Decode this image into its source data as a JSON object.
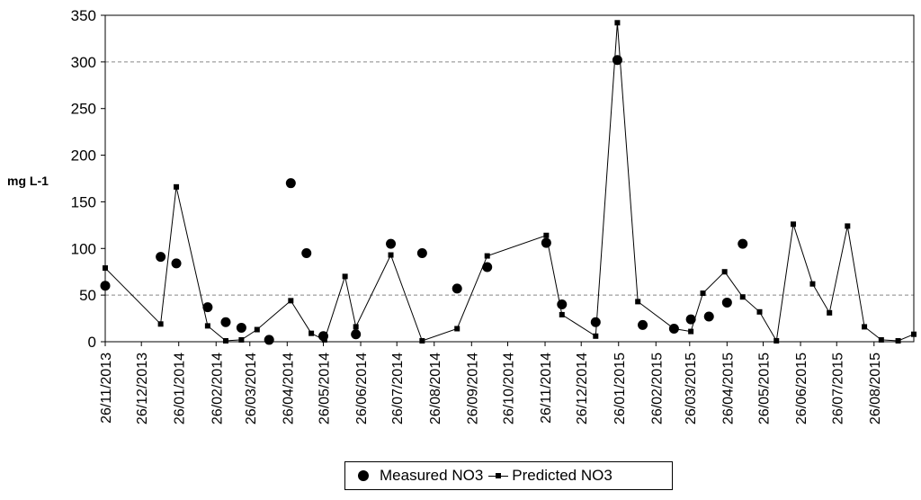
{
  "chart_data": {
    "type": "scatter",
    "ylabel": "mg L-1",
    "xlabel": "",
    "ylim": [
      0,
      350
    ],
    "yticks": [
      0,
      50,
      100,
      150,
      200,
      250,
      300,
      350
    ],
    "grid": "dashed horizontal lines at 50 and 300",
    "legend_position": "bottom-center",
    "x_tick_labels": [
      "26/11/2013",
      "26/12/2013",
      "26/01/2014",
      "26/02/2014",
      "26/03/2014",
      "26/04/2014",
      "26/05/2014",
      "26/06/2014",
      "26/07/2014",
      "26/08/2014",
      "26/09/2014",
      "26/10/2014",
      "26/11/2014",
      "26/12/2014",
      "26/01/2015",
      "26/02/2015",
      "26/03/2015",
      "26/04/2015",
      "26/05/2015",
      "26/06/2015",
      "26/07/2015",
      "26/08/2015"
    ],
    "xlim": [
      "2013-11-26",
      "2015-09-28"
    ],
    "series": [
      {
        "name": "Measured NO3",
        "marker": "circle",
        "color": "#000000",
        "x": [
          "2013-11-26",
          "2014-01-11",
          "2014-01-24",
          "2014-02-19",
          "2014-03-06",
          "2014-03-19",
          "2014-04-11",
          "2014-04-29",
          "2014-05-12",
          "2014-05-26",
          "2014-06-22",
          "2014-07-21",
          "2014-08-16",
          "2014-09-14",
          "2014-10-09",
          "2014-11-27",
          "2014-12-10",
          "2015-01-07",
          "2015-01-25",
          "2015-02-15",
          "2015-03-13",
          "2015-03-27",
          "2015-04-11",
          "2015-04-26",
          "2015-05-09"
        ],
        "y": [
          60,
          91,
          84,
          37,
          21,
          15,
          2,
          170,
          95,
          6,
          8,
          105,
          95,
          57,
          80,
          106,
          40,
          21,
          302,
          18,
          14,
          24,
          27,
          42,
          105
        ]
      },
      {
        "name": "Predicted NO3",
        "marker": "square",
        "color": "#000000",
        "x": [
          "2013-11-26",
          "2014-01-11",
          "2014-01-24",
          "2014-02-19",
          "2014-03-06",
          "2014-03-19",
          "2014-04-01",
          "2014-04-29",
          "2014-05-16",
          "2014-05-27",
          "2014-06-13",
          "2014-06-22",
          "2014-07-21",
          "2014-08-16",
          "2014-09-14",
          "2014-10-09",
          "2014-11-27",
          "2014-12-10",
          "2015-01-07",
          "2015-01-25",
          "2015-02-11",
          "2015-03-13",
          "2015-03-27",
          "2015-04-06",
          "2015-04-24",
          "2015-05-09",
          "2015-05-23",
          "2015-06-06",
          "2015-06-20",
          "2015-07-06",
          "2015-07-20",
          "2015-08-04",
          "2015-08-18",
          "2015-09-01",
          "2015-09-15",
          "2015-09-28"
        ],
        "y": [
          79,
          19,
          166,
          17,
          1,
          2,
          13,
          44,
          9,
          2,
          70,
          16,
          93,
          1,
          14,
          92,
          114,
          29,
          6,
          342,
          43,
          14,
          11,
          52,
          75,
          48,
          32,
          1,
          126,
          62,
          31,
          124,
          16,
          2,
          1,
          8
        ]
      }
    ]
  }
}
